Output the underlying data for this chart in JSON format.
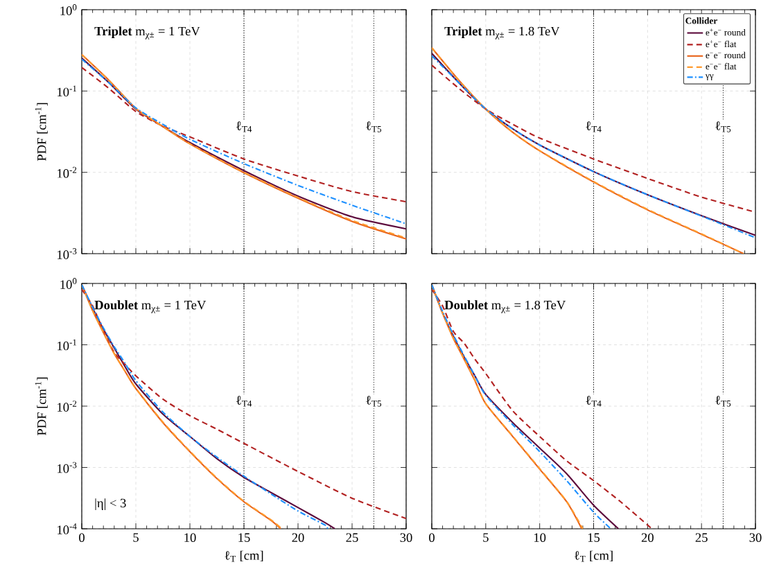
{
  "chart_data": [
    {
      "type": "line",
      "title": "**Triplet**  m$_{χ±}$ = 1 TeV",
      "ylabel": "PDF [cm$^{-1}$]",
      "log": "y",
      "grid": true,
      "tick_labels": "y",
      "xlim": [
        0,
        30
      ],
      "ylim": [
        0.001,
        1
      ],
      "xticks": [
        {
          "value": 0,
          "label": null
        },
        {
          "value": 5,
          "label": null
        },
        {
          "value": 10,
          "label": null
        },
        {
          "value": 15,
          "label": null
        },
        {
          "value": 20,
          "label": null
        },
        {
          "value": 25,
          "label": null
        },
        {
          "value": 30,
          "label": null
        }
      ],
      "yticks": [
        {
          "value": 1,
          "label": "10$^{0}$"
        },
        {
          "value": 0.1,
          "label": "10$^{-1}$"
        },
        {
          "value": 0.01,
          "label": "10$^{-2}$"
        },
        {
          "value": 0.001,
          "label": "10$^{-3}$"
        }
      ],
      "ref_lines": [
        {
          "axis": "x",
          "value": 15,
          "label": "ℓ$_{T4}$",
          "color": "#000000",
          "line_style": "dotted"
        },
        {
          "axis": "x",
          "value": 27,
          "label": "ℓ$_{T5}$",
          "color": "#000000",
          "line_style": "dotted"
        }
      ],
      "series": [
        {
          "color": "#5c0a3c",
          "line_style": "solid",
          "x": [
            0,
            2.5,
            5,
            7.5,
            10,
            15,
            20,
            25,
            30
          ],
          "values": [
            0.254,
            0.127,
            0.06,
            0.0366,
            0.0232,
            0.0105,
            0.0051,
            0.00284,
            0.00202
          ]
        },
        {
          "color": "#b22222",
          "line_style": "dashed",
          "x": [
            0,
            2.5,
            5,
            7.5,
            10,
            15,
            20,
            25,
            30
          ],
          "values": [
            0.195,
            0.108,
            0.056,
            0.037,
            0.0273,
            0.0146,
            0.009,
            0.0058,
            0.00435
          ]
        },
        {
          "color": "#e8641b",
          "line_style": "solid",
          "x": [
            0,
            2.5,
            5,
            7.5,
            10,
            15,
            20,
            25,
            30
          ],
          "values": [
            0.28,
            0.136,
            0.061,
            0.0366,
            0.0224,
            0.0099,
            0.0048,
            0.00249,
            0.00152
          ]
        },
        {
          "color": "#ff9a2e",
          "line_style": "dashed",
          "x": [
            0,
            2.5,
            5,
            7.5,
            10,
            15,
            20,
            25,
            30
          ],
          "values": [
            0.28,
            0.136,
            0.061,
            0.0366,
            0.0225,
            0.01,
            0.0049,
            0.00256,
            0.00156
          ]
        },
        {
          "color": "#1e90ff",
          "line_style": "dashdot",
          "x": [
            0,
            2.5,
            5,
            7.5,
            10,
            15,
            20,
            25,
            30
          ],
          "values": [
            0.246,
            0.127,
            0.062,
            0.039,
            0.0255,
            0.0128,
            0.0069,
            0.00394,
            0.00233
          ]
        }
      ]
    },
    {
      "type": "line",
      "title": "**Triplet**  m$_{χ±}$ = 1.8 TeV",
      "log": "y",
      "grid": true,
      "tick_labels": false,
      "legend": "top right",
      "legend_title": "Collider",
      "xlim": [
        0,
        30
      ],
      "ylim": [
        0.001,
        1
      ],
      "xticks": [
        {
          "value": 0,
          "label": null
        },
        {
          "value": 5,
          "label": null
        },
        {
          "value": 10,
          "label": null
        },
        {
          "value": 15,
          "label": null
        },
        {
          "value": 20,
          "label": null
        },
        {
          "value": 25,
          "label": null
        },
        {
          "value": 30,
          "label": null
        }
      ],
      "yticks": [
        {
          "value": 1,
          "label": null
        },
        {
          "value": 0.1,
          "label": null
        },
        {
          "value": 0.01,
          "label": null
        },
        {
          "value": 0.001,
          "label": null
        }
      ],
      "ref_lines": [
        {
          "axis": "x",
          "value": 15,
          "label": "ℓ$_{T4}$",
          "color": "#000000",
          "line_style": "dotted"
        },
        {
          "axis": "x",
          "value": 27,
          "label": "ℓ$_{T5}$",
          "color": "#000000",
          "line_style": "dotted"
        }
      ],
      "series": [
        {
          "name": "e$^{+}$e$^{−}$ round",
          "color": "#5c0a3c",
          "line_style": "solid",
          "x": [
            0,
            2.5,
            5,
            7.5,
            10,
            15,
            20,
            25,
            30
          ],
          "values": [
            0.29,
            0.127,
            0.06,
            0.0343,
            0.0217,
            0.0102,
            0.0053,
            0.00293,
            0.00168
          ]
        },
        {
          "name": "e$^{+}$e$^{−}$ flat",
          "color": "#b22222",
          "line_style": "dashed",
          "x": [
            0,
            2.5,
            5,
            7.5,
            10,
            15,
            20,
            25,
            30
          ],
          "values": [
            0.208,
            0.108,
            0.06,
            0.039,
            0.0264,
            0.0146,
            0.0084,
            0.00496,
            0.00324
          ]
        },
        {
          "name": "e$^{−}$e$^{−}$ round",
          "color": "#e8641b",
          "line_style": "solid",
          "x": [
            0,
            2.5,
            5,
            7.5,
            10,
            15,
            20,
            25,
            28.9
          ],
          "values": [
            0.34,
            0.136,
            0.06,
            0.0311,
            0.0184,
            0.0076,
            0.00345,
            0.00173,
            0.001
          ]
        },
        {
          "name": "e$^{−}$e$^{−}$ flat",
          "color": "#ff9a2e",
          "line_style": "dashed",
          "x": [
            0,
            2.5,
            5,
            7.5,
            10,
            15,
            20,
            25,
            28.9
          ],
          "values": [
            0.34,
            0.136,
            0.06,
            0.0311,
            0.0185,
            0.0077,
            0.0035,
            0.00175,
            0.001
          ]
        },
        {
          "name": "γγ",
          "color": "#1e90ff",
          "line_style": "dashdot",
          "x": [
            0,
            2.5,
            5,
            7.5,
            10,
            15,
            20,
            25,
            30
          ],
          "values": [
            0.271,
            0.127,
            0.06,
            0.0343,
            0.0217,
            0.0102,
            0.0053,
            0.0029,
            0.00157
          ]
        }
      ]
    },
    {
      "type": "line",
      "title": "**Doublet**  m$_{χ±}$ = 1 TeV",
      "xlabel": "ℓ$_{T}$ [cm]",
      "ylabel": "PDF [cm$^{-1}$]",
      "log": "y",
      "grid": true,
      "annotations": [
        "|η| < 3"
      ],
      "xlim": [
        0,
        30
      ],
      "ylim": [
        0.0001,
        1
      ],
      "xticks": [
        0,
        5,
        10,
        15,
        20,
        25,
        30
      ],
      "yticks": [
        {
          "value": 1,
          "label": "10$^{0}$"
        },
        {
          "value": 0.1,
          "label": "10$^{-1}$"
        },
        {
          "value": 0.01,
          "label": "10$^{-2}$"
        },
        {
          "value": 0.001,
          "label": "10$^{-3}$"
        },
        {
          "value": 0.0001,
          "label": "10$^{-4}$"
        }
      ],
      "ref_lines": [
        {
          "axis": "x",
          "value": 15,
          "label": "ℓ$_{T4}$",
          "color": "#000000",
          "line_style": "dotted"
        },
        {
          "axis": "x",
          "value": 27,
          "label": "ℓ$_{T5}$",
          "color": "#000000",
          "line_style": "dotted"
        }
      ],
      "series": [
        {
          "color": "#5c0a3c",
          "line_style": "solid",
          "x": [
            0,
            1,
            2,
            3,
            4,
            5,
            7.5,
            10,
            12.5,
            15,
            17.5,
            20,
            22.5,
            23.4
          ],
          "values": [
            0.95,
            0.395,
            0.18,
            0.089,
            0.044,
            0.023,
            0.0074,
            0.0032,
            0.00139,
            0.00069,
            0.00039,
            0.000222,
            0.000126,
            0.0001
          ]
        },
        {
          "color": "#b22222",
          "line_style": "dashed",
          "x": [
            0,
            1,
            2,
            3,
            4,
            5,
            7.5,
            10,
            12.5,
            15,
            20,
            25,
            30
          ],
          "values": [
            0.8,
            0.43,
            0.172,
            0.075,
            0.048,
            0.0312,
            0.013,
            0.007,
            0.0042,
            0.00247,
            0.00086,
            0.000315,
            0.000147
          ]
        },
        {
          "color": "#e8641b",
          "line_style": "solid",
          "x": [
            0,
            1,
            2,
            3,
            4,
            5,
            7.5,
            10,
            12.5,
            15,
            17.5,
            18.4
          ],
          "values": [
            0.95,
            0.362,
            0.158,
            0.072,
            0.037,
            0.0193,
            0.0054,
            0.00181,
            0.00066,
            0.000276,
            0.000137,
            0.0001
          ]
        },
        {
          "color": "#ff9a2e",
          "line_style": "dashed",
          "x": [
            0,
            1,
            2,
            3,
            4,
            5,
            7.5,
            10,
            12.5,
            15,
            17.5,
            18.5
          ],
          "values": [
            0.95,
            0.362,
            0.158,
            0.072,
            0.037,
            0.0195,
            0.0055,
            0.00184,
            0.00067,
            0.00028,
            0.00014,
            0.0001
          ]
        },
        {
          "color": "#1e90ff",
          "line_style": "dashdot",
          "x": [
            0,
            1,
            2,
            3,
            4,
            5,
            7.5,
            10,
            12.5,
            15,
            17.5,
            20,
            22.5,
            22.7
          ],
          "values": [
            0.95,
            0.41,
            0.188,
            0.093,
            0.05,
            0.026,
            0.008,
            0.0032,
            0.00147,
            0.00072,
            0.00037,
            0.000195,
            0.000115,
            0.0001
          ]
        }
      ]
    },
    {
      "type": "line",
      "title": "**Doublet**  m$_{χ±}$ = 1.8 TeV",
      "xlabel": "ℓ$_{T}$ [cm]",
      "log": "y",
      "grid": true,
      "tick_labels": "x",
      "xlim": [
        0,
        30
      ],
      "ylim": [
        0.0001,
        1
      ],
      "xticks": [
        0,
        5,
        10,
        15,
        20,
        25,
        30
      ],
      "yticks": [
        {
          "value": 1,
          "label": null
        },
        {
          "value": 0.1,
          "label": null
        },
        {
          "value": 0.01,
          "label": null
        },
        {
          "value": 0.001,
          "label": null
        },
        {
          "value": 0.0001,
          "label": null
        }
      ],
      "ref_lines": [
        {
          "axis": "x",
          "value": 15,
          "label": "ℓ$_{T4}$",
          "color": "#000000",
          "line_style": "dotted"
        },
        {
          "axis": "x",
          "value": 27,
          "label": "ℓ$_{T5}$",
          "color": "#000000",
          "line_style": "dotted"
        }
      ],
      "series": [
        {
          "color": "#5c0a3c",
          "line_style": "solid",
          "x": [
            0,
            1,
            2,
            3,
            4,
            5,
            7.5,
            10,
            12.5,
            15,
            17.3
          ],
          "values": [
            0.95,
            0.33,
            0.138,
            0.063,
            0.031,
            0.0155,
            0.0054,
            0.00207,
            0.00079,
            0.000242,
            0.0001
          ]
        },
        {
          "color": "#b22222",
          "line_style": "dashed",
          "x": [
            0,
            1,
            2,
            3,
            4,
            5,
            7.5,
            10,
            12.5,
            15,
            17.5,
            20.4
          ],
          "values": [
            0.8,
            0.43,
            0.165,
            0.106,
            0.058,
            0.034,
            0.0084,
            0.0032,
            0.00128,
            0.00061,
            0.000276,
            0.0001
          ]
        },
        {
          "color": "#e8641b",
          "line_style": "solid",
          "x": [
            0,
            1,
            2,
            3,
            4,
            5,
            7.5,
            10,
            12.5,
            13.9
          ],
          "values": [
            0.95,
            0.33,
            0.127,
            0.058,
            0.026,
            0.0109,
            0.0032,
            0.00094,
            0.000276,
            0.0001
          ]
        },
        {
          "color": "#ff9a2e",
          "line_style": "dashed",
          "x": [
            0,
            1,
            2,
            3,
            4,
            5,
            7.5,
            10,
            12.5,
            14
          ],
          "values": [
            0.95,
            0.33,
            0.128,
            0.059,
            0.0265,
            0.011,
            0.00325,
            0.00096,
            0.00028,
            0.0001
          ]
        },
        {
          "color": "#1e90ff",
          "line_style": "dashdot",
          "x": [
            0,
            1,
            2,
            3,
            4,
            5,
            7.5,
            10,
            12.5,
            15,
            16.6
          ],
          "values": [
            0.95,
            0.35,
            0.145,
            0.066,
            0.031,
            0.015,
            0.005,
            0.00181,
            0.00061,
            0.000186,
            0.0001
          ]
        }
      ]
    }
  ]
}
